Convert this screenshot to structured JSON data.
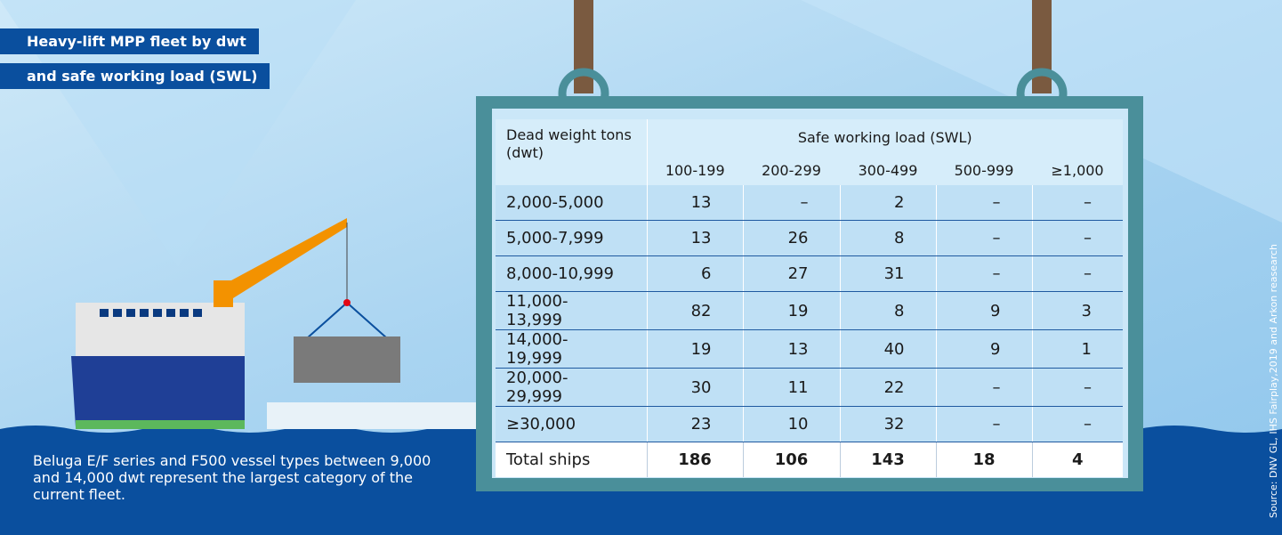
{
  "title": [
    "Heavy-lift MPP fleet by dwt",
    "and safe working load (SWL)"
  ],
  "table": {
    "row_header": "Dead weight tons (dwt)",
    "group_header": "Safe working load (SWL)",
    "columns": [
      "100-199",
      "200-299",
      "300-499",
      "500-999",
      "≥1,000"
    ],
    "rows": [
      {
        "label": "2,000-5,000",
        "cells": [
          13,
          "–",
          2,
          "–",
          "–"
        ]
      },
      {
        "label": "5,000-7,999",
        "cells": [
          13,
          26,
          8,
          "–",
          "–"
        ]
      },
      {
        "label": "8,000-10,999",
        "cells": [
          6,
          27,
          31,
          "–",
          "–"
        ]
      },
      {
        "label": "11,000-13,999",
        "cells": [
          82,
          19,
          8,
          9,
          3
        ]
      },
      {
        "label": "14,000-19,999",
        "cells": [
          19,
          13,
          40,
          9,
          1
        ]
      },
      {
        "label": "20,000-29,999",
        "cells": [
          30,
          11,
          22,
          "–",
          "–"
        ]
      },
      {
        "label": "≥30,000",
        "cells": [
          23,
          10,
          32,
          "–",
          "–"
        ]
      }
    ],
    "total": {
      "label": "Total ships",
      "cells": [
        186,
        106,
        143,
        18,
        4
      ]
    }
  },
  "note": "Beluga E/F series and F500 vessel types between 9,000 and 14,000 dwt represent the largest category of the current fleet.",
  "source": "Source: DNV GL, IHS Fairplay,2019 and Arkon reasearch"
}
